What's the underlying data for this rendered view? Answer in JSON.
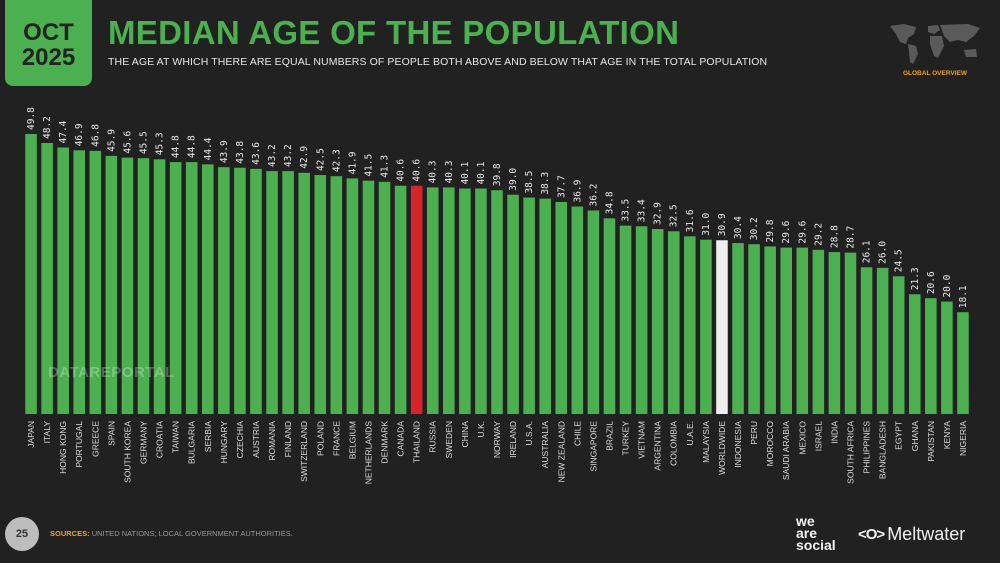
{
  "header": {
    "date_month": "OCT",
    "date_year": "2025",
    "title": "MEDIAN AGE OF THE POPULATION",
    "subtitle": "THE AGE AT WHICH THERE ARE EQUAL NUMBERS OF PEOPLE BOTH ABOVE AND BELOW THAT AGE IN THE TOTAL POPULATION",
    "section_label": "GLOBAL OVERVIEW"
  },
  "watermark": "DATAREPORTAL",
  "footer": {
    "page_number": "25",
    "sources_label": "SOURCES:",
    "sources_text": "UNITED NATIONS; LOCAL GOVERNMENT AUTHORITIES.",
    "logo_we_are_social": [
      "we",
      "are",
      "social"
    ],
    "logo_meltwater": "Meltwater",
    "logo_meltwater_icon": "<O>"
  },
  "colors": {
    "background": "#212121",
    "bar_default": "#4cb050",
    "bar_highlight_country": "#d7242b",
    "bar_worldwide": "#eeeeee",
    "accent_orange": "#f0a020"
  },
  "chart_data": {
    "type": "bar",
    "title": "MEDIAN AGE OF THE POPULATION",
    "xlabel": "",
    "ylabel": "",
    "ylim": [
      0,
      50
    ],
    "grid": false,
    "legend": "none",
    "highlight": {
      "THAILAND": "country",
      "WORLDWIDE": "worldwide"
    },
    "categories": [
      "JAPAN",
      "ITALY",
      "HONG KONG",
      "PORTUGAL",
      "GREECE",
      "SPAIN",
      "SOUTH KOREA",
      "GERMANY",
      "CROATIA",
      "TAIWAN",
      "BULGARIA",
      "SERBIA",
      "HUNGARY",
      "CZECHIA",
      "AUSTRIA",
      "ROMANIA",
      "FINLAND",
      "SWITZERLAND",
      "POLAND",
      "FRANCE",
      "BELGIUM",
      "NETHERLANDS",
      "DENMARK",
      "CANADA",
      "THAILAND",
      "RUSSIA",
      "SWEDEN",
      "CHINA",
      "U.K.",
      "NORWAY",
      "IRELAND",
      "U.S.A.",
      "AUSTRALIA",
      "NEW ZEALAND",
      "CHILE",
      "SINGAPORE",
      "BRAZIL",
      "TURKEY",
      "VIETNAM",
      "ARGENTINA",
      "COLOMBIA",
      "U.A.E.",
      "MALAYSIA",
      "WORLDWIDE",
      "INDONESIA",
      "PERU",
      "MOROCCO",
      "SAUDI ARABIA",
      "MEXICO",
      "ISRAEL",
      "INDIA",
      "SOUTH AFRICA",
      "PHILIPPINES",
      "BANGLADESH",
      "EGYPT",
      "GHANA",
      "PAKISTAN",
      "KENYA",
      "NIGERIA"
    ],
    "values": [
      49.8,
      48.2,
      47.4,
      46.9,
      46.8,
      45.9,
      45.6,
      45.5,
      45.3,
      44.8,
      44.8,
      44.4,
      43.9,
      43.8,
      43.6,
      43.2,
      43.2,
      42.9,
      42.5,
      42.3,
      41.9,
      41.5,
      41.3,
      40.6,
      40.6,
      40.3,
      40.3,
      40.1,
      40.1,
      39.8,
      39.0,
      38.5,
      38.3,
      37.7,
      36.9,
      36.2,
      34.8,
      33.5,
      33.4,
      32.9,
      32.5,
      31.6,
      31.0,
      30.9,
      30.4,
      30.2,
      29.8,
      29.6,
      29.6,
      29.2,
      28.8,
      28.7,
      26.1,
      26.0,
      24.5,
      21.3,
      20.6,
      20.0,
      18.1
    ],
    "value_labels": [
      "49.8",
      "48.2",
      "47.4",
      "46.9",
      "46.8",
      "45.9",
      "45.6",
      "45.5",
      "45.3",
      "44.8",
      "44.8",
      "44.4",
      "43.9",
      "43.8",
      "43.6",
      "43.2",
      "43.2",
      "42.9",
      "42.5",
      "42.3",
      "41.9",
      "41.5",
      "41.3",
      "40.6",
      "40.6",
      "40.3",
      "40.3",
      "40.1",
      "40.1",
      "39.8",
      "39.0",
      "38.5",
      "38.3",
      "37.7",
      "36.9",
      "36.2",
      "34.8",
      "33.5",
      "33.4",
      "32.9",
      "32.5",
      "31.6",
      "31.0",
      "30.9",
      "30.4",
      "30.2",
      "29.8",
      "29.6",
      "29.6",
      "29.2",
      "28.8",
      "28.7",
      "26.1",
      "26.0",
      "24.5",
      "21.3",
      "20.6",
      "20.0",
      "18.1"
    ]
  }
}
